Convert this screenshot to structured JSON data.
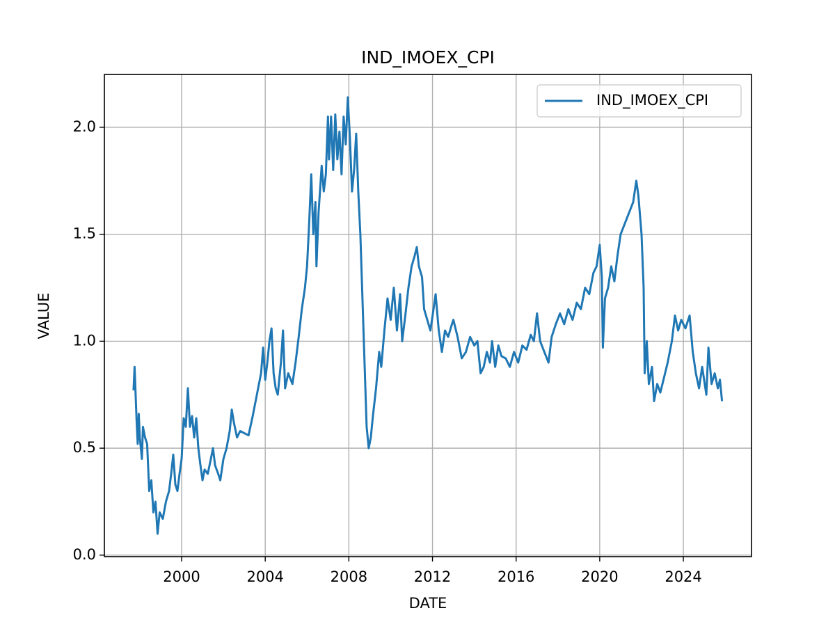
{
  "chart_data": {
    "type": "line",
    "title": "IND_IMOEX_CPI",
    "x_label": "DATE",
    "y_label": "VALUE",
    "x": [
      1997.7,
      1997.75,
      1997.8,
      1997.85,
      1997.9,
      1997.95,
      1998.0,
      1998.1,
      1998.15,
      1998.25,
      1998.35,
      1998.45,
      1998.55,
      1998.65,
      1998.75,
      1998.85,
      1998.95,
      1999.1,
      1999.25,
      1999.4,
      1999.5,
      1999.6,
      1999.7,
      1999.8,
      1999.9,
      2000.0,
      2000.1,
      2000.2,
      2000.3,
      2000.4,
      2000.5,
      2000.6,
      2000.7,
      2000.8,
      2000.9,
      2001.0,
      2001.1,
      2001.25,
      2001.4,
      2001.5,
      2001.6,
      2001.75,
      2001.85,
      2002.0,
      2002.15,
      2002.3,
      2002.4,
      2002.5,
      2002.65,
      2002.8,
      2003.0,
      2003.2,
      2003.4,
      2003.6,
      2003.8,
      2003.9,
      2004.0,
      2004.1,
      2004.2,
      2004.3,
      2004.4,
      2004.5,
      2004.6,
      2004.75,
      2004.85,
      2004.95,
      2005.1,
      2005.3,
      2005.45,
      2005.6,
      2005.75,
      2005.9,
      2006.0,
      2006.1,
      2006.2,
      2006.3,
      2006.4,
      2006.45,
      2006.55,
      2006.7,
      2006.8,
      2006.9,
      2007.0,
      2007.05,
      2007.15,
      2007.25,
      2007.35,
      2007.45,
      2007.55,
      2007.65,
      2007.75,
      2007.85,
      2007.95,
      2008.05,
      2008.15,
      2008.25,
      2008.35,
      2008.45,
      2008.55,
      2008.65,
      2008.75,
      2008.85,
      2008.95,
      2009.05,
      2009.15,
      2009.3,
      2009.45,
      2009.55,
      2009.7,
      2009.85,
      2010.0,
      2010.15,
      2010.3,
      2010.45,
      2010.55,
      2010.7,
      2010.85,
      2011.0,
      2011.15,
      2011.25,
      2011.35,
      2011.5,
      2011.6,
      2011.75,
      2011.9,
      2012.05,
      2012.15,
      2012.3,
      2012.45,
      2012.6,
      2012.75,
      2012.9,
      2013.0,
      2013.2,
      2013.4,
      2013.6,
      2013.8,
      2014.0,
      2014.15,
      2014.3,
      2014.45,
      2014.6,
      2014.75,
      2014.85,
      2015.0,
      2015.15,
      2015.3,
      2015.5,
      2015.7,
      2015.9,
      2016.1,
      2016.3,
      2016.5,
      2016.7,
      2016.85,
      2017.0,
      2017.15,
      2017.35,
      2017.55,
      2017.7,
      2017.9,
      2018.1,
      2018.3,
      2018.5,
      2018.7,
      2018.9,
      2019.1,
      2019.3,
      2019.5,
      2019.7,
      2019.85,
      2020.0,
      2020.1,
      2020.15,
      2020.25,
      2020.4,
      2020.55,
      2020.7,
      2020.85,
      2021.0,
      2021.2,
      2021.4,
      2021.6,
      2021.75,
      2021.85,
      2022.0,
      2022.1,
      2022.15,
      2022.25,
      2022.35,
      2022.5,
      2022.6,
      2022.75,
      2022.9,
      2023.05,
      2023.25,
      2023.45,
      2023.6,
      2023.75,
      2023.9,
      2024.1,
      2024.3,
      2024.45,
      2024.6,
      2024.75,
      2024.9,
      2025.1,
      2025.2,
      2025.35,
      2025.5,
      2025.65,
      2025.75,
      2025.85
    ],
    "series": [
      {
        "name": "IND_IMOEX_CPI",
        "color": "#1f77b4",
        "values": [
          0.77,
          0.88,
          0.75,
          0.62,
          0.52,
          0.66,
          0.55,
          0.45,
          0.6,
          0.55,
          0.52,
          0.3,
          0.35,
          0.2,
          0.25,
          0.1,
          0.2,
          0.17,
          0.25,
          0.3,
          0.38,
          0.47,
          0.33,
          0.3,
          0.38,
          0.45,
          0.64,
          0.6,
          0.78,
          0.6,
          0.65,
          0.55,
          0.64,
          0.5,
          0.42,
          0.35,
          0.4,
          0.38,
          0.45,
          0.5,
          0.42,
          0.38,
          0.35,
          0.45,
          0.5,
          0.58,
          0.68,
          0.62,
          0.55,
          0.58,
          0.57,
          0.56,
          0.65,
          0.75,
          0.85,
          0.97,
          0.82,
          0.9,
          1.0,
          1.06,
          0.85,
          0.78,
          0.75,
          0.9,
          1.05,
          0.78,
          0.85,
          0.8,
          0.9,
          1.02,
          1.15,
          1.25,
          1.35,
          1.55,
          1.78,
          1.5,
          1.65,
          1.35,
          1.6,
          1.82,
          1.7,
          1.78,
          2.05,
          1.85,
          2.05,
          1.8,
          2.06,
          1.85,
          1.98,
          1.78,
          2.05,
          1.92,
          2.14,
          1.95,
          1.7,
          1.8,
          1.97,
          1.7,
          1.5,
          1.2,
          0.9,
          0.6,
          0.5,
          0.55,
          0.65,
          0.78,
          0.95,
          0.88,
          1.05,
          1.2,
          1.1,
          1.25,
          1.05,
          1.22,
          1.0,
          1.12,
          1.25,
          1.35,
          1.4,
          1.44,
          1.35,
          1.3,
          1.15,
          1.1,
          1.05,
          1.15,
          1.22,
          1.05,
          0.95,
          1.05,
          1.02,
          1.07,
          1.1,
          1.02,
          0.92,
          0.95,
          1.02,
          0.98,
          1.0,
          0.85,
          0.88,
          0.95,
          0.9,
          1.0,
          0.88,
          0.98,
          0.93,
          0.92,
          0.88,
          0.95,
          0.9,
          0.98,
          0.96,
          1.03,
          1.0,
          1.13,
          1.0,
          0.95,
          0.9,
          1.02,
          1.08,
          1.13,
          1.08,
          1.15,
          1.1,
          1.18,
          1.15,
          1.25,
          1.22,
          1.32,
          1.35,
          1.45,
          1.3,
          0.97,
          1.2,
          1.25,
          1.35,
          1.28,
          1.4,
          1.5,
          1.55,
          1.6,
          1.65,
          1.75,
          1.68,
          1.5,
          1.25,
          0.85,
          1.0,
          0.8,
          0.88,
          0.72,
          0.8,
          0.76,
          0.82,
          0.9,
          1.0,
          1.12,
          1.05,
          1.1,
          1.06,
          1.12,
          0.95,
          0.85,
          0.78,
          0.88,
          0.75,
          0.97,
          0.8,
          0.85,
          0.78,
          0.82,
          0.72
        ]
      }
    ],
    "xlim": [
      1996.305,
      2027.26
    ],
    "xticks": [
      2000,
      2004,
      2008,
      2012,
      2016,
      2020,
      2024
    ],
    "ylim": [
      -0.007,
      2.247
    ],
    "yticks": [
      {
        "value": 0,
        "label": "0.0"
      },
      0.5,
      {
        "value": 1,
        "label": "1.0"
      },
      1.5,
      {
        "value": 2,
        "label": "2.0"
      }
    ],
    "grid": true,
    "legend": "upper right"
  }
}
